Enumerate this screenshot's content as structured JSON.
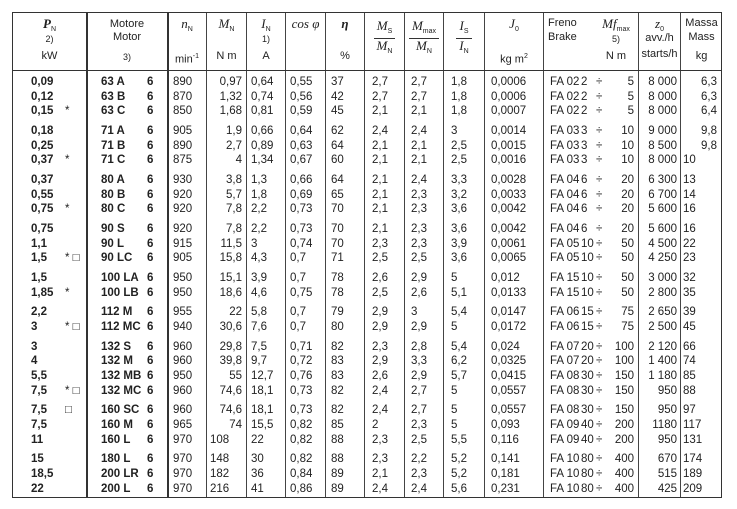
{
  "header": {
    "p": {
      "sym": "P",
      "sub": "N",
      "note": "2)",
      "unit": "kW"
    },
    "motor": {
      "it": "Motore",
      "en": "Motor",
      "note": "3)"
    },
    "n": {
      "sym": "n",
      "sub": "N",
      "unit": "min",
      "exp": "-1"
    },
    "m": {
      "sym": "M",
      "sub": "N",
      "unit": "N m"
    },
    "i": {
      "sym": "I",
      "sub": "N",
      "note": "1)",
      "unit": "A"
    },
    "cos": {
      "label": "cos φ"
    },
    "eta": {
      "sym": "η",
      "unit": "%"
    },
    "ms": {
      "num": "M",
      "num_sub": "S",
      "den": "M",
      "den_sub": "N"
    },
    "mmax": {
      "num": "M",
      "num_sub": "max",
      "den": "M",
      "den_sub": "N"
    },
    "is": {
      "num": "I",
      "num_sub": "S",
      "den": "I",
      "den_sub": "N"
    },
    "j0": {
      "sym": "J",
      "sub": "0",
      "unit": "kg m",
      "exp": "2"
    },
    "brake": {
      "it": "Freno",
      "en": "Brake",
      "mf": "Mf",
      "mf_sub": "max",
      "note": "5)",
      "unit": "N m"
    },
    "z0": {
      "sym": "z",
      "sub": "0",
      "it": "avv./h",
      "en": "starts/h"
    },
    "mass": {
      "it": "Massa",
      "en": "Mass",
      "unit": "kg"
    }
  },
  "groups": [
    {
      "rows": [
        {
          "p": "0,09",
          "mark": "",
          "motor": "63 A",
          "poles": "6",
          "n": "890",
          "m": "0,97",
          "i": "0,64",
          "cos": "0,55",
          "eta": "37",
          "ms": "2,7",
          "mmax": "2,7",
          "is": "1,8",
          "j0": "0,0006",
          "brake": "FA 02",
          "bmin": "2",
          "bmax": "5",
          "z0": "8 000",
          "mass": "6,3"
        },
        {
          "p": "0,12",
          "mark": "",
          "motor": "63 B",
          "poles": "6",
          "n": "870",
          "m": "1,32",
          "i": "0,74",
          "cos": "0,56",
          "eta": "42",
          "ms": "2,7",
          "mmax": "2,7",
          "is": "1,8",
          "j0": "0,0006",
          "brake": "FA 02",
          "bmin": "2",
          "bmax": "5",
          "z0": "8 000",
          "mass": "6,3"
        },
        {
          "p": "0,15",
          "mark": "*",
          "motor": "63 C",
          "poles": "6",
          "n": "850",
          "m": "1,68",
          "i": "0,81",
          "cos": "0,59",
          "eta": "45",
          "ms": "2,1",
          "mmax": "2,1",
          "is": "1,8",
          "j0": "0,0007",
          "brake": "FA 02",
          "bmin": "2",
          "bmax": "5",
          "z0": "8 000",
          "mass": "6,4"
        }
      ]
    },
    {
      "rows": [
        {
          "p": "0,18",
          "mark": "",
          "motor": "71 A",
          "poles": "6",
          "n": "905",
          "m": "1,9",
          "i": "0,66",
          "cos": "0,64",
          "eta": "62",
          "ms": "2,4",
          "mmax": "2,4",
          "is": "3",
          "j0": "0,0014",
          "brake": "FA 03",
          "bmin": "3",
          "bmax": "10",
          "z0": "9 000",
          "mass": "9,8"
        },
        {
          "p": "0,25",
          "mark": "",
          "motor": "71 B",
          "poles": "6",
          "n": "890",
          "m": "2,7",
          "i": "0,89",
          "cos": "0,63",
          "eta": "64",
          "ms": "2,1",
          "mmax": "2,1",
          "is": "2,5",
          "j0": "0,0015",
          "brake": "FA 03",
          "bmin": "3",
          "bmax": "10",
          "z0": "8 500",
          "mass": "9,8"
        },
        {
          "p": "0,37",
          "mark": "*",
          "motor": "71 C",
          "poles": "6",
          "n": "875",
          "m": "4",
          "i": "1,34",
          "cos": "0,67",
          "eta": "60",
          "ms": "2,1",
          "mmax": "2,1",
          "is": "2,5",
          "j0": "0,0016",
          "brake": "FA 03",
          "bmin": "3",
          "bmax": "10",
          "z0": "8 000",
          "mass": "10"
        }
      ]
    },
    {
      "rows": [
        {
          "p": "0,37",
          "mark": "",
          "motor": "80 A",
          "poles": "6",
          "n": "930",
          "m": "3,8",
          "i": "1,3",
          "cos": "0,66",
          "eta": "64",
          "ms": "2,1",
          "mmax": "2,4",
          "is": "3,3",
          "j0": "0,0028",
          "brake": "FA 04",
          "bmin": "6",
          "bmax": "20",
          "z0": "6 300",
          "mass": "13"
        },
        {
          "p": "0,55",
          "mark": "",
          "motor": "80 B",
          "poles": "6",
          "n": "920",
          "m": "5,7",
          "i": "1,8",
          "cos": "0,69",
          "eta": "65",
          "ms": "2,1",
          "mmax": "2,3",
          "is": "3,2",
          "j0": "0,0033",
          "brake": "FA 04",
          "bmin": "6",
          "bmax": "20",
          "z0": "6 700",
          "mass": "14"
        },
        {
          "p": "0,75",
          "mark": "*",
          "motor": "80 C",
          "poles": "6",
          "n": "920",
          "m": "7,8",
          "i": "2,2",
          "cos": "0,73",
          "eta": "70",
          "ms": "2,1",
          "mmax": "2,3",
          "is": "3,6",
          "j0": "0,0042",
          "brake": "FA 04",
          "bmin": "6",
          "bmax": "20",
          "z0": "5 600",
          "mass": "16"
        }
      ]
    },
    {
      "rows": [
        {
          "p": "0,75",
          "mark": "",
          "motor": "90 S",
          "poles": "6",
          "n": "920",
          "m": "7,8",
          "i": "2,2",
          "cos": "0,73",
          "eta": "70",
          "ms": "2,1",
          "mmax": "2,3",
          "is": "3,6",
          "j0": "0,0042",
          "brake": "FA 04",
          "bmin": "6",
          "bmax": "20",
          "z0": "5 600",
          "mass": "16"
        },
        {
          "p": "1,1",
          "mark": "",
          "motor": "90 L",
          "poles": "6",
          "n": "915",
          "m": "11,5",
          "i": "3",
          "cos": "0,74",
          "eta": "70",
          "ms": "2,3",
          "mmax": "2,3",
          "is": "3,9",
          "j0": "0,0061",
          "brake": "FA 05",
          "bmin": "10",
          "bmax": "50",
          "z0": "4 500",
          "mass": "22"
        },
        {
          "p": "1,5",
          "mark": "* □",
          "motor": "90 LC",
          "poles": "6",
          "n": "905",
          "m": "15,8",
          "i": "4,3",
          "cos": "0,7",
          "eta": "71",
          "ms": "2,5",
          "mmax": "2,5",
          "is": "3,6",
          "j0": "0,0065",
          "brake": "FA 05",
          "bmin": "10",
          "bmax": "50",
          "z0": "4 250",
          "mass": "23"
        }
      ]
    },
    {
      "rows": [
        {
          "p": "1,5",
          "mark": "",
          "motor": "100 LA",
          "poles": "6",
          "n": "950",
          "m": "15,1",
          "i": "3,9",
          "cos": "0,7",
          "eta": "78",
          "ms": "2,6",
          "mmax": "2,9",
          "is": "5",
          "j0": "0,012",
          "brake": "FA 15",
          "bmin": "10",
          "bmax": "50",
          "z0": "3 000",
          "mass": "32"
        },
        {
          "p": "1,85",
          "mark": "*",
          "motor": "100 LB",
          "poles": "6",
          "n": "950",
          "m": "18,6",
          "i": "4,6",
          "cos": "0,75",
          "eta": "78",
          "ms": "2,5",
          "mmax": "2,6",
          "is": "5,1",
          "j0": "0,0133",
          "brake": "FA 15",
          "bmin": "10",
          "bmax": "50",
          "z0": "2 800",
          "mass": "35"
        }
      ]
    },
    {
      "rows": [
        {
          "p": "2,2",
          "mark": "",
          "motor": "112 M",
          "poles": "6",
          "n": "955",
          "m": "22",
          "i": "5,8",
          "cos": "0,7",
          "eta": "79",
          "ms": "2,9",
          "mmax": "3",
          "is": "5,4",
          "j0": "0,0147",
          "brake": "FA 06",
          "bmin": "15",
          "bmax": "75",
          "z0": "2 650",
          "mass": "39"
        },
        {
          "p": "3",
          "mark": "* □",
          "motor": "112 MC",
          "poles": "6",
          "n": "940",
          "m": "30,6",
          "i": "7,6",
          "cos": "0,7",
          "eta": "80",
          "ms": "2,9",
          "mmax": "2,9",
          "is": "5",
          "j0": "0,0172",
          "brake": "FA 06",
          "bmin": "15",
          "bmax": "75",
          "z0": "2 500",
          "mass": "45"
        }
      ]
    },
    {
      "rows": [
        {
          "p": "3",
          "mark": "",
          "motor": "132 S",
          "poles": "6",
          "n": "960",
          "m": "29,8",
          "i": "7,5",
          "cos": "0,71",
          "eta": "82",
          "ms": "2,3",
          "mmax": "2,8",
          "is": "5,4",
          "j0": "0,024",
          "brake": "FA 07",
          "bmin": "20",
          "bmax": "100",
          "z0": "2 120",
          "mass": "66"
        },
        {
          "p": "4",
          "mark": "",
          "motor": "132 M",
          "poles": "6",
          "n": "960",
          "m": "39,8",
          "i": "9,7",
          "cos": "0,72",
          "eta": "83",
          "ms": "2,9",
          "mmax": "3,3",
          "is": "6,2",
          "j0": "0,0325",
          "brake": "FA 07",
          "bmin": "20",
          "bmax": "100",
          "z0": "1 400",
          "mass": "74"
        },
        {
          "p": "5,5",
          "mark": "",
          "motor": "132 MB",
          "poles": "6",
          "n": "950",
          "m": "55",
          "i": "12,7",
          "cos": "0,76",
          "eta": "83",
          "ms": "2,6",
          "mmax": "2,9",
          "is": "5,7",
          "j0": "0,0415",
          "brake": "FA 08",
          "bmin": "30",
          "bmax": "150",
          "z0": "1 180",
          "mass": "85"
        },
        {
          "p": "7,5",
          "mark": "* □",
          "motor": "132 MC",
          "poles": "6",
          "n": "960",
          "m": "74,6",
          "i": "18,1",
          "cos": "0,73",
          "eta": "82",
          "ms": "2,4",
          "mmax": "2,7",
          "is": "5",
          "j0": "0,0557",
          "brake": "FA 08",
          "bmin": "30",
          "bmax": "150",
          "z0": "950",
          "mass": "88"
        }
      ]
    },
    {
      "rows": [
        {
          "p": "7,5",
          "mark": "□",
          "motor": "160 SC",
          "poles": "6",
          "n": "960",
          "m": "74,6",
          "i": "18,1",
          "cos": "0,73",
          "eta": "82",
          "ms": "2,4",
          "mmax": "2,7",
          "is": "5",
          "j0": "0,0557",
          "brake": "FA 08",
          "bmin": "30",
          "bmax": "150",
          "z0": "950",
          "mass": "97"
        },
        {
          "p": "7,5",
          "mark": "",
          "motor": "160 M",
          "poles": "6",
          "n": "965",
          "m": "74",
          "i": "15,5",
          "cos": "0,82",
          "eta": "85",
          "ms": "2",
          "mmax": "2,3",
          "is": "5",
          "j0": "0,093",
          "brake": "FA 09",
          "bmin": "40",
          "bmax": "200",
          "z0": "1180",
          "mass": "117"
        },
        {
          "p": "11",
          "mark": "",
          "motor": "160 L",
          "poles": "6",
          "n": "970",
          "m": "108",
          "i": "22",
          "cos": "0,82",
          "eta": "88",
          "ms": "2,3",
          "mmax": "2,5",
          "is": "5,5",
          "j0": "0,116",
          "brake": "FA 09",
          "bmin": "40",
          "bmax": "200",
          "z0": "950",
          "mass": "131"
        }
      ]
    },
    {
      "rows": [
        {
          "p": "15",
          "mark": "",
          "motor": "180 L",
          "poles": "6",
          "n": "970",
          "m": "148",
          "i": "30",
          "cos": "0,82",
          "eta": "88",
          "ms": "2,3",
          "mmax": "2,2",
          "is": "5,2",
          "j0": "0,141",
          "brake": "FA 10",
          "bmin": "80",
          "bmax": "400",
          "z0": "670",
          "mass": "174"
        },
        {
          "p": "18,5",
          "mark": "",
          "motor": "200 LR",
          "poles": "6",
          "n": "970",
          "m": "182",
          "i": "36",
          "cos": "0,84",
          "eta": "89",
          "ms": "2,1",
          "mmax": "2,3",
          "is": "5,2",
          "j0": "0,181",
          "brake": "FA 10",
          "bmin": "80",
          "bmax": "400",
          "z0": "515",
          "mass": "189"
        },
        {
          "p": "22",
          "mark": "",
          "motor": "200 L",
          "poles": "6",
          "n": "970",
          "m": "216",
          "i": "41",
          "cos": "0,86",
          "eta": "89",
          "ms": "2,4",
          "mmax": "2,4",
          "is": "5,6",
          "j0": "0,231",
          "brake": "FA 10",
          "bmin": "80",
          "bmax": "400",
          "z0": "425",
          "mass": "209"
        }
      ]
    }
  ],
  "symbols": {
    "range_sep": "÷"
  }
}
